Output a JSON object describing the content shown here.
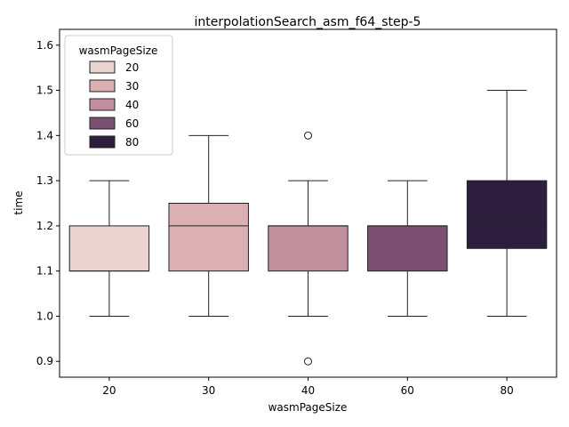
{
  "chart_data": {
    "type": "box",
    "title": "interpolationSearch_asm_f64_step-5",
    "xlabel": "wasmPageSize",
    "ylabel": "time",
    "ylim": [
      0.865,
      1.635
    ],
    "yticks": [
      "0.9",
      "1.0",
      "1.1",
      "1.2",
      "1.3",
      "1.4",
      "1.5",
      "1.6"
    ],
    "categories": [
      "20",
      "30",
      "40",
      "60",
      "80"
    ],
    "boxes": [
      {
        "category": "20",
        "whisker_low": 1.0,
        "q1": 1.1,
        "median": 1.1,
        "q3": 1.2,
        "whisker_high": 1.3,
        "outliers": [],
        "color": "#ebd4cf"
      },
      {
        "category": "30",
        "whisker_low": 1.0,
        "q1": 1.1,
        "median": 1.2,
        "q3": 1.25,
        "whisker_high": 1.4,
        "outliers": [],
        "color": "#dbb0b3"
      },
      {
        "category": "40",
        "whisker_low": 1.0,
        "q1": 1.1,
        "median": 1.2,
        "q3": 1.2,
        "whisker_high": 1.3,
        "outliers": [
          0.9,
          1.4
        ],
        "color": "#c28f9e"
      },
      {
        "category": "60",
        "whisker_low": 1.0,
        "q1": 1.1,
        "median": 1.2,
        "q3": 1.2,
        "whisker_high": 1.3,
        "outliers": [],
        "color": "#7b5073"
      },
      {
        "category": "80",
        "whisker_low": 1.0,
        "q1": 1.15,
        "median": 1.2,
        "q3": 1.3,
        "whisker_high": 1.5,
        "outliers": [],
        "color": "#2d1e3e"
      }
    ],
    "legend": {
      "title": "wasmPageSize",
      "placement": "top-left",
      "entries": [
        {
          "label": "20",
          "color": "#ebd4cf"
        },
        {
          "label": "30",
          "color": "#dbb0b3"
        },
        {
          "label": "40",
          "color": "#c28f9e"
        },
        {
          "label": "60",
          "color": "#7b5073"
        },
        {
          "label": "80",
          "color": "#2d1e3e"
        }
      ]
    },
    "grid": false
  }
}
